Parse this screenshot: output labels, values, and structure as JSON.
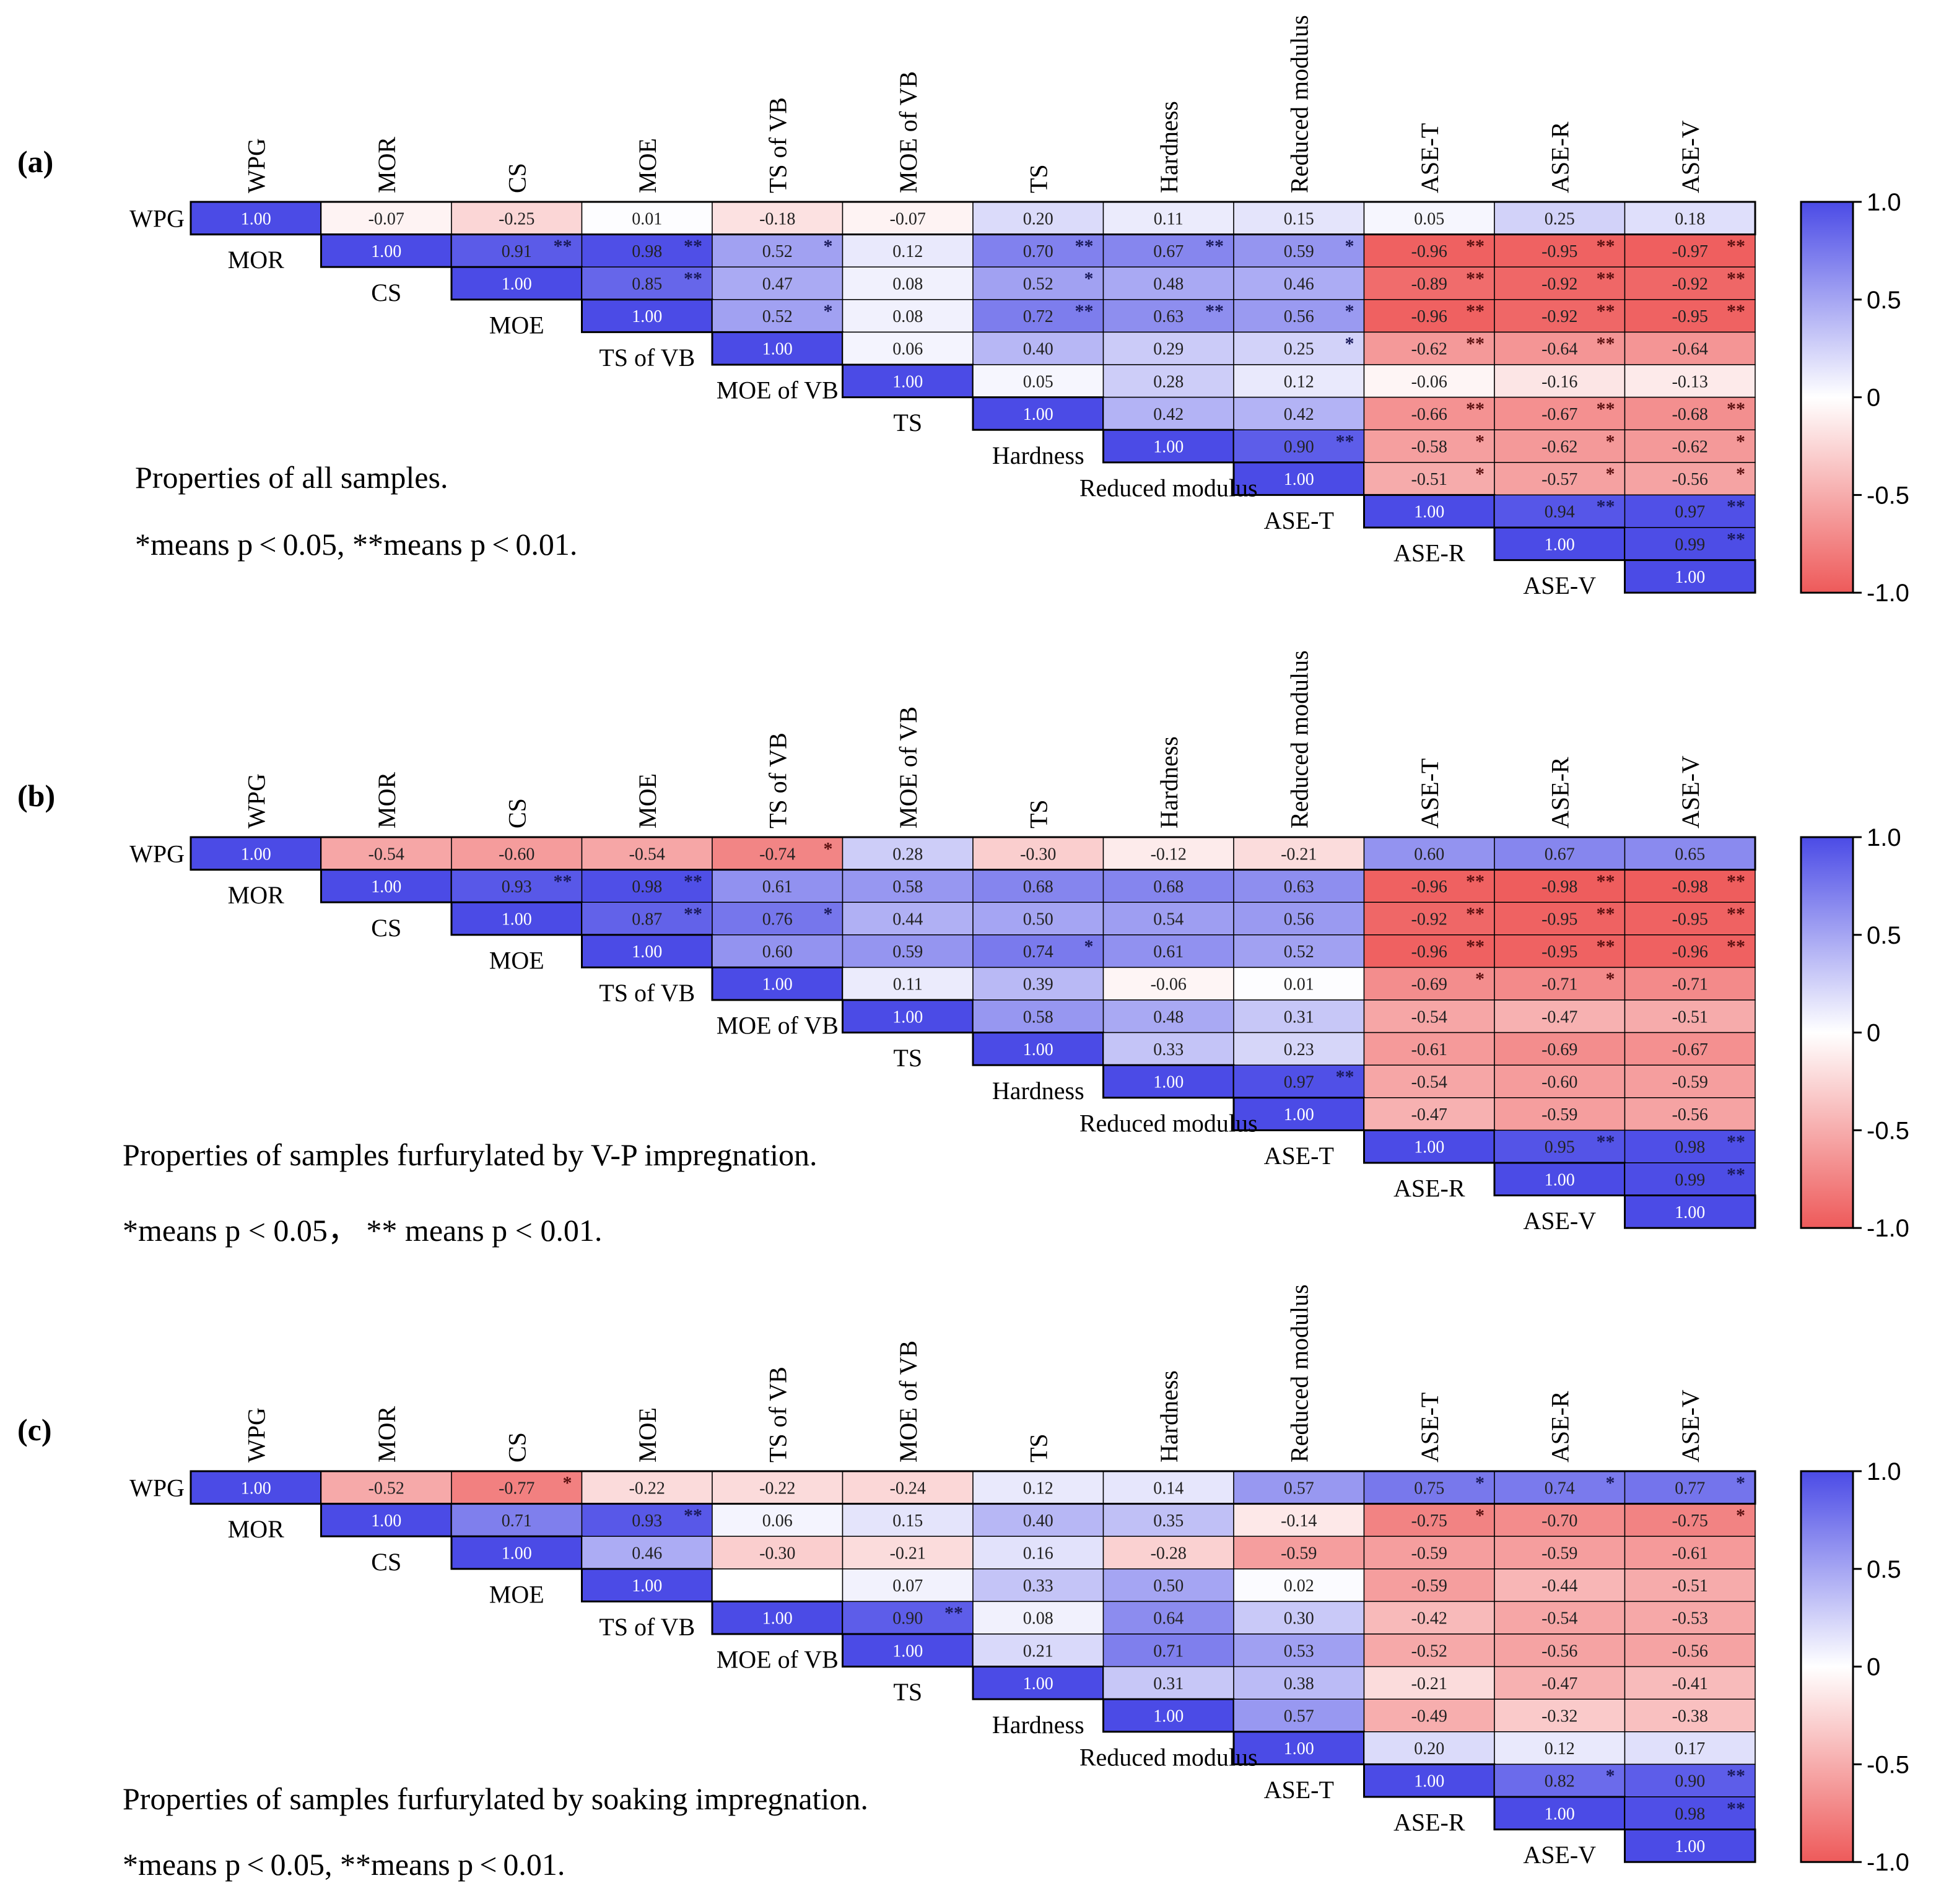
{
  "colors": {
    "positive": "#4b4be6",
    "negative": "#ee5a5a",
    "neutral": "#ffffff"
  },
  "colorbar": {
    "ticks": [
      "1.0",
      "0.5",
      "0",
      "-0.5",
      "-1.0"
    ]
  },
  "chart_data": [
    {
      "type": "heatmap",
      "panel": "(a)",
      "variables": [
        "WPG",
        "MOR",
        "CS",
        "MOE",
        "TS of VB",
        "MOE of VB",
        "TS",
        "Hardness",
        "Reduced modulus",
        "ASE-T",
        "ASE-R",
        "ASE-V"
      ],
      "caption": "Properties of all samples.",
      "note": "*means p < 0.05, **means p < 0.01.",
      "clim": [
        -1,
        1
      ],
      "values": [
        [
          "1.00",
          "-0.07",
          "-0.25",
          "0.01",
          "-0.18",
          "-0.07",
          "0.20",
          "0.11",
          "0.15",
          "0.05",
          "0.25",
          "0.18"
        ],
        [
          "1.00",
          "0.91",
          "0.98",
          "0.52",
          "0.12",
          "0.70",
          "0.67",
          "0.59",
          "-0.96",
          "-0.95",
          "-0.97"
        ],
        [
          "1.00",
          "0.85",
          "0.47",
          "0.08",
          "0.52",
          "0.48",
          "0.46",
          "-0.89",
          "-0.92",
          "-0.92"
        ],
        [
          "1.00",
          "0.52",
          "0.08",
          "0.72",
          "0.63",
          "0.56",
          "-0.96",
          "-0.92",
          "-0.95"
        ],
        [
          "1.00",
          "0.06",
          "0.40",
          "0.29",
          "0.25",
          "-0.62",
          "-0.64",
          "-0.64"
        ],
        [
          "1.00",
          "0.05",
          "0.28",
          "0.12",
          "-0.06",
          "-0.16",
          "-0.13"
        ],
        [
          "1.00",
          "0.42",
          "0.42",
          "-0.66",
          "-0.67",
          "-0.68"
        ],
        [
          "1.00",
          "0.90",
          "-0.58",
          "-0.62",
          "-0.62"
        ],
        [
          "1.00",
          "-0.51",
          "-0.57",
          "-0.56"
        ],
        [
          "1.00",
          "0.94",
          "0.97"
        ],
        [
          "1.00",
          "0.99"
        ],
        [
          "1.00"
        ]
      ],
      "significance": [
        [
          "",
          "",
          "",
          "",
          "",
          "",
          "",
          "",
          "",
          "",
          "",
          ""
        ],
        [
          "",
          "**",
          "**",
          "*",
          "",
          "**",
          "**",
          "*",
          "**",
          "**",
          "**"
        ],
        [
          "",
          "**",
          "",
          "",
          "*",
          "",
          "",
          "**",
          "**",
          "**"
        ],
        [
          "",
          "*",
          "",
          "**",
          "**",
          "*",
          "**",
          "**",
          "**"
        ],
        [
          "",
          "",
          "",
          "",
          "*",
          "**",
          "**"
        ],
        [
          "",
          "",
          "",
          "",
          "",
          "",
          ""
        ],
        [
          "",
          "",
          "",
          "**",
          "**",
          "**"
        ],
        [
          "",
          "**",
          "*",
          "*",
          "*"
        ],
        [
          "",
          "*",
          "*",
          "*"
        ],
        [
          "",
          "**",
          "**"
        ],
        [
          "",
          "**"
        ],
        [
          ""
        ]
      ]
    },
    {
      "type": "heatmap",
      "panel": "(b)",
      "variables": [
        "WPG",
        "MOR",
        "CS",
        "MOE",
        "TS of VB",
        "MOE of VB",
        "TS",
        "Hardness",
        "Reduced modulus",
        "ASE-T",
        "ASE-R",
        "ASE-V"
      ],
      "caption": "Properties of samples furfurylated by V-P impregnation.",
      "note": "*means p < 0.05，  ** means p < 0.01.",
      "clim": [
        -1,
        1
      ],
      "values": [
        [
          "1.00",
          "-0.54",
          "-0.60",
          "-0.54",
          "-0.74",
          "0.28",
          "-0.30",
          "-0.12",
          "-0.21",
          "0.60",
          "0.67",
          "0.65"
        ],
        [
          "1.00",
          "0.93",
          "0.98",
          "0.61",
          "0.58",
          "0.68",
          "0.68",
          "0.63",
          "-0.96",
          "-0.98",
          "-0.98"
        ],
        [
          "1.00",
          "0.87",
          "0.76",
          "0.44",
          "0.50",
          "0.54",
          "0.56",
          "-0.92",
          "-0.95",
          "-0.95"
        ],
        [
          "1.00",
          "0.60",
          "0.59",
          "0.74",
          "0.61",
          "0.52",
          "-0.96",
          "-0.95",
          "-0.96"
        ],
        [
          "1.00",
          "0.11",
          "0.39",
          "-0.06",
          "0.01",
          "-0.69",
          "-0.71",
          "-0.71"
        ],
        [
          "1.00",
          "0.58",
          "0.48",
          "0.31",
          "-0.54",
          "-0.47",
          "-0.51"
        ],
        [
          "1.00",
          "0.33",
          "0.23",
          "-0.61",
          "-0.69",
          "-0.67"
        ],
        [
          "1.00",
          "0.97",
          "-0.54",
          "-0.60",
          "-0.59"
        ],
        [
          "1.00",
          "-0.47",
          "-0.59",
          "-0.56"
        ],
        [
          "1.00",
          "0.95",
          "0.98"
        ],
        [
          "1.00",
          "0.99"
        ],
        [
          "1.00"
        ]
      ],
      "significance": [
        [
          "",
          "",
          "",
          "",
          "*",
          "",
          "",
          "",
          "",
          "",
          "",
          ""
        ],
        [
          "",
          "**",
          "**",
          "",
          "",
          "",
          "",
          "",
          "**",
          "**",
          "**"
        ],
        [
          "",
          "**",
          "*",
          "",
          "",
          "",
          "",
          "**",
          "**",
          "**"
        ],
        [
          "",
          "",
          "",
          "*",
          "",
          "",
          "**",
          "**",
          "**"
        ],
        [
          "",
          "",
          "",
          "",
          "",
          "*",
          "*"
        ],
        [
          "",
          "",
          "",
          "",
          "",
          "",
          ""
        ],
        [
          "",
          "",
          "",
          "",
          "",
          ""
        ],
        [
          "",
          "**",
          "",
          "",
          ""
        ],
        [
          "",
          "",
          "",
          ""
        ],
        [
          "",
          "**",
          "**"
        ],
        [
          "",
          "**"
        ],
        [
          ""
        ]
      ]
    },
    {
      "type": "heatmap",
      "panel": "(c)",
      "variables": [
        "WPG",
        "MOR",
        "CS",
        "MOE",
        "TS of VB",
        "MOE of VB",
        "TS",
        "Hardness",
        "Reduced modulus",
        "ASE-T",
        "ASE-R",
        "ASE-V"
      ],
      "caption": "Properties of samples furfurylated by soaking impregnation.",
      "note": "*means p < 0.05, **means p < 0.01.",
      "clim": [
        -1,
        1
      ],
      "values": [
        [
          "1.00",
          "-0.52",
          "-0.77",
          "-0.22",
          "-0.22",
          "-0.24",
          "0.12",
          "0.14",
          "0.57",
          "0.75",
          "0.74",
          "0.77"
        ],
        [
          "1.00",
          "0.71",
          "0.93",
          "0.06",
          "0.15",
          "0.40",
          "0.35",
          "-0.14",
          "-0.75",
          "-0.70",
          "-0.75"
        ],
        [
          "1.00",
          "0.46",
          "-0.30",
          "-0.21",
          "0.16",
          "-0.28",
          "-0.59",
          "-0.59",
          "-0.59",
          "-0.61"
        ],
        [
          "1.00",
          "",
          "0.07",
          "0.33",
          "0.50",
          "0.02",
          "-0.59",
          "-0.44",
          "-0.51"
        ],
        [
          "1.00",
          "0.90",
          "0.08",
          "0.64",
          "0.30",
          "-0.42",
          "-0.54",
          "-0.53"
        ],
        [
          "1.00",
          "0.21",
          "0.71",
          "0.53",
          "-0.52",
          "-0.56",
          "-0.56"
        ],
        [
          "1.00",
          "0.31",
          "0.38",
          "-0.21",
          "-0.47",
          "-0.41"
        ],
        [
          "1.00",
          "0.57",
          "-0.49",
          "-0.32",
          "-0.38"
        ],
        [
          "1.00",
          "0.20",
          "0.12",
          "0.17"
        ],
        [
          "1.00",
          "0.82",
          "0.90"
        ],
        [
          "1.00",
          "0.98"
        ],
        [
          "1.00"
        ]
      ],
      "significance": [
        [
          "",
          "",
          "*",
          "",
          "",
          "",
          "",
          "",
          "",
          "*",
          "*",
          "*"
        ],
        [
          "",
          "",
          "**",
          "",
          "",
          "",
          "",
          "",
          "*",
          "",
          "*"
        ],
        [
          "",
          "",
          "",
          "",
          "",
          "",
          "",
          "",
          "",
          ""
        ],
        [
          "",
          "",
          "",
          "",
          "",
          "",
          "",
          "",
          ""
        ],
        [
          "",
          "**",
          "",
          "",
          "",
          "",
          "",
          ""
        ],
        [
          "",
          "",
          "",
          "",
          "",
          "",
          ""
        ],
        [
          "",
          "",
          "",
          "",
          "",
          ""
        ],
        [
          "",
          "",
          "",
          "",
          ""
        ],
        [
          "",
          "",
          "",
          ""
        ],
        [
          "",
          "*",
          "**"
        ],
        [
          "",
          "**"
        ],
        [
          ""
        ]
      ]
    }
  ]
}
